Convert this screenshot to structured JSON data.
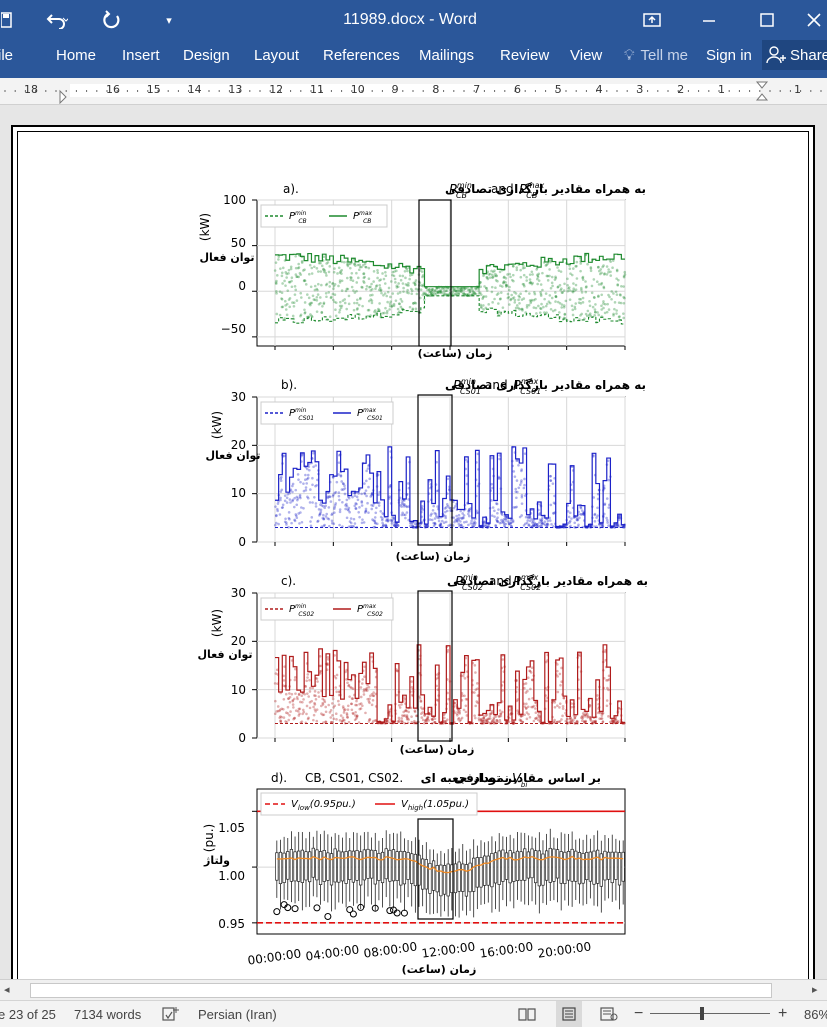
{
  "window": {
    "title": "11989.docx - Word",
    "icons": [
      "save-icon",
      "undo-icon",
      "redo-icon",
      "customize-qat-icon",
      "ribbon-display-icon",
      "minimize-icon",
      "maximize-icon",
      "close-icon"
    ]
  },
  "ribbon": {
    "tabs": [
      "ile",
      "Home",
      "Insert",
      "Design",
      "Layout",
      "References",
      "Mailings",
      "Review",
      "View"
    ],
    "tell_me": "Tell me",
    "sign_in": "Sign in",
    "share": "Share"
  },
  "ruler": {
    "numbers": [
      "18",
      "16",
      "15",
      "14",
      "13",
      "12",
      "11",
      "10",
      "9",
      "8",
      "7",
      "6",
      "5",
      "4",
      "3",
      "2",
      "1",
      "1"
    ]
  },
  "status": {
    "page": "e 23 of 25",
    "words": "7134 words",
    "language": "Persian (Iran)",
    "zoom": "86%"
  },
  "figure": {
    "ylabel": "(kW)",
    "ylabel_fa": "توان فعال",
    "xlabel": "زمان (ساعت)",
    "panels": [
      {
        "title_prefix": "a).",
        "title_fa": "به همراه مقادیر بارگذاری تصادفی",
        "title_tail": "and",
        "min_sym": "P",
        "min_sup": "min",
        "min_sub": "CB",
        "max_sym": "P",
        "max_sup": "max",
        "max_sub": "CB",
        "legend": [
          "P",
          "P"
        ],
        "legend_sub": [
          "CB",
          "CB"
        ],
        "legend_sup": [
          "min",
          "max"
        ],
        "color": "#1e8a2e",
        "yticks": [
          "100",
          "50",
          "0",
          "−50"
        ],
        "ylim": [
          -60,
          100
        ]
      },
      {
        "title_prefix": "b).",
        "title_fa": "به همراه مقادیر بارگذاری تصادفی",
        "title_tail": "and",
        "min_sym": "P",
        "min_sup": "min",
        "min_sub": "CS01",
        "max_sym": "P",
        "max_sup": "max",
        "max_sub": "CS01",
        "legend": [
          "P",
          "P"
        ],
        "legend_sub": [
          "CS01",
          "CS01"
        ],
        "legend_sup": [
          "min",
          "max"
        ],
        "color": "#1c22c8",
        "yticks": [
          "30",
          "20",
          "10",
          "0"
        ],
        "ylim": [
          0,
          30
        ]
      },
      {
        "title_prefix": "c).",
        "title_fa": "به همراه مقادیر بارگذاری تصادفی",
        "title_tail": "and",
        "min_sym": "P",
        "min_sup": "min",
        "min_sub": "CS02",
        "max_sym": "P",
        "max_sup": "max",
        "max_sub": "CS02",
        "legend": [
          "P",
          "P"
        ],
        "legend_sub": [
          "CS02",
          "CS02"
        ],
        "legend_sup": [
          "min",
          "max"
        ],
        "color": "#b01c1c",
        "yticks": [
          "30",
          "20",
          "10",
          "0"
        ],
        "ylim": [
          0,
          30
        ]
      }
    ],
    "panel_d": {
      "title_prefix": "d).",
      "title_tail": "CB, CS01, CS02.",
      "title_fa": "نمودار جعبه ای",
      "title_sym": "V",
      "title_sub": "bi",
      "title_fa2": "بر اساس مقادیر تصادفی",
      "ylabel": "(pu.)",
      "ylabel_fa": "ولتاژ",
      "yticks": [
        "1.05",
        "1.00",
        "0.95"
      ],
      "ylim": [
        0.94,
        1.07
      ],
      "vlow_label": "V",
      "vlow_sub": "low",
      "vlow_tail": "(0.95pu.)",
      "vhigh_label": "V",
      "vhigh_sub": "high",
      "vhigh_tail": "(1.05pu.)",
      "vlow": 0.95,
      "vhigh": 1.05,
      "xticks": [
        "00:00:00",
        "04:00:00",
        "08:00:00",
        "12:00:00",
        "16:00:00",
        "20:00:00"
      ],
      "xlabel": "زمان (ساعت)"
    }
  }
}
